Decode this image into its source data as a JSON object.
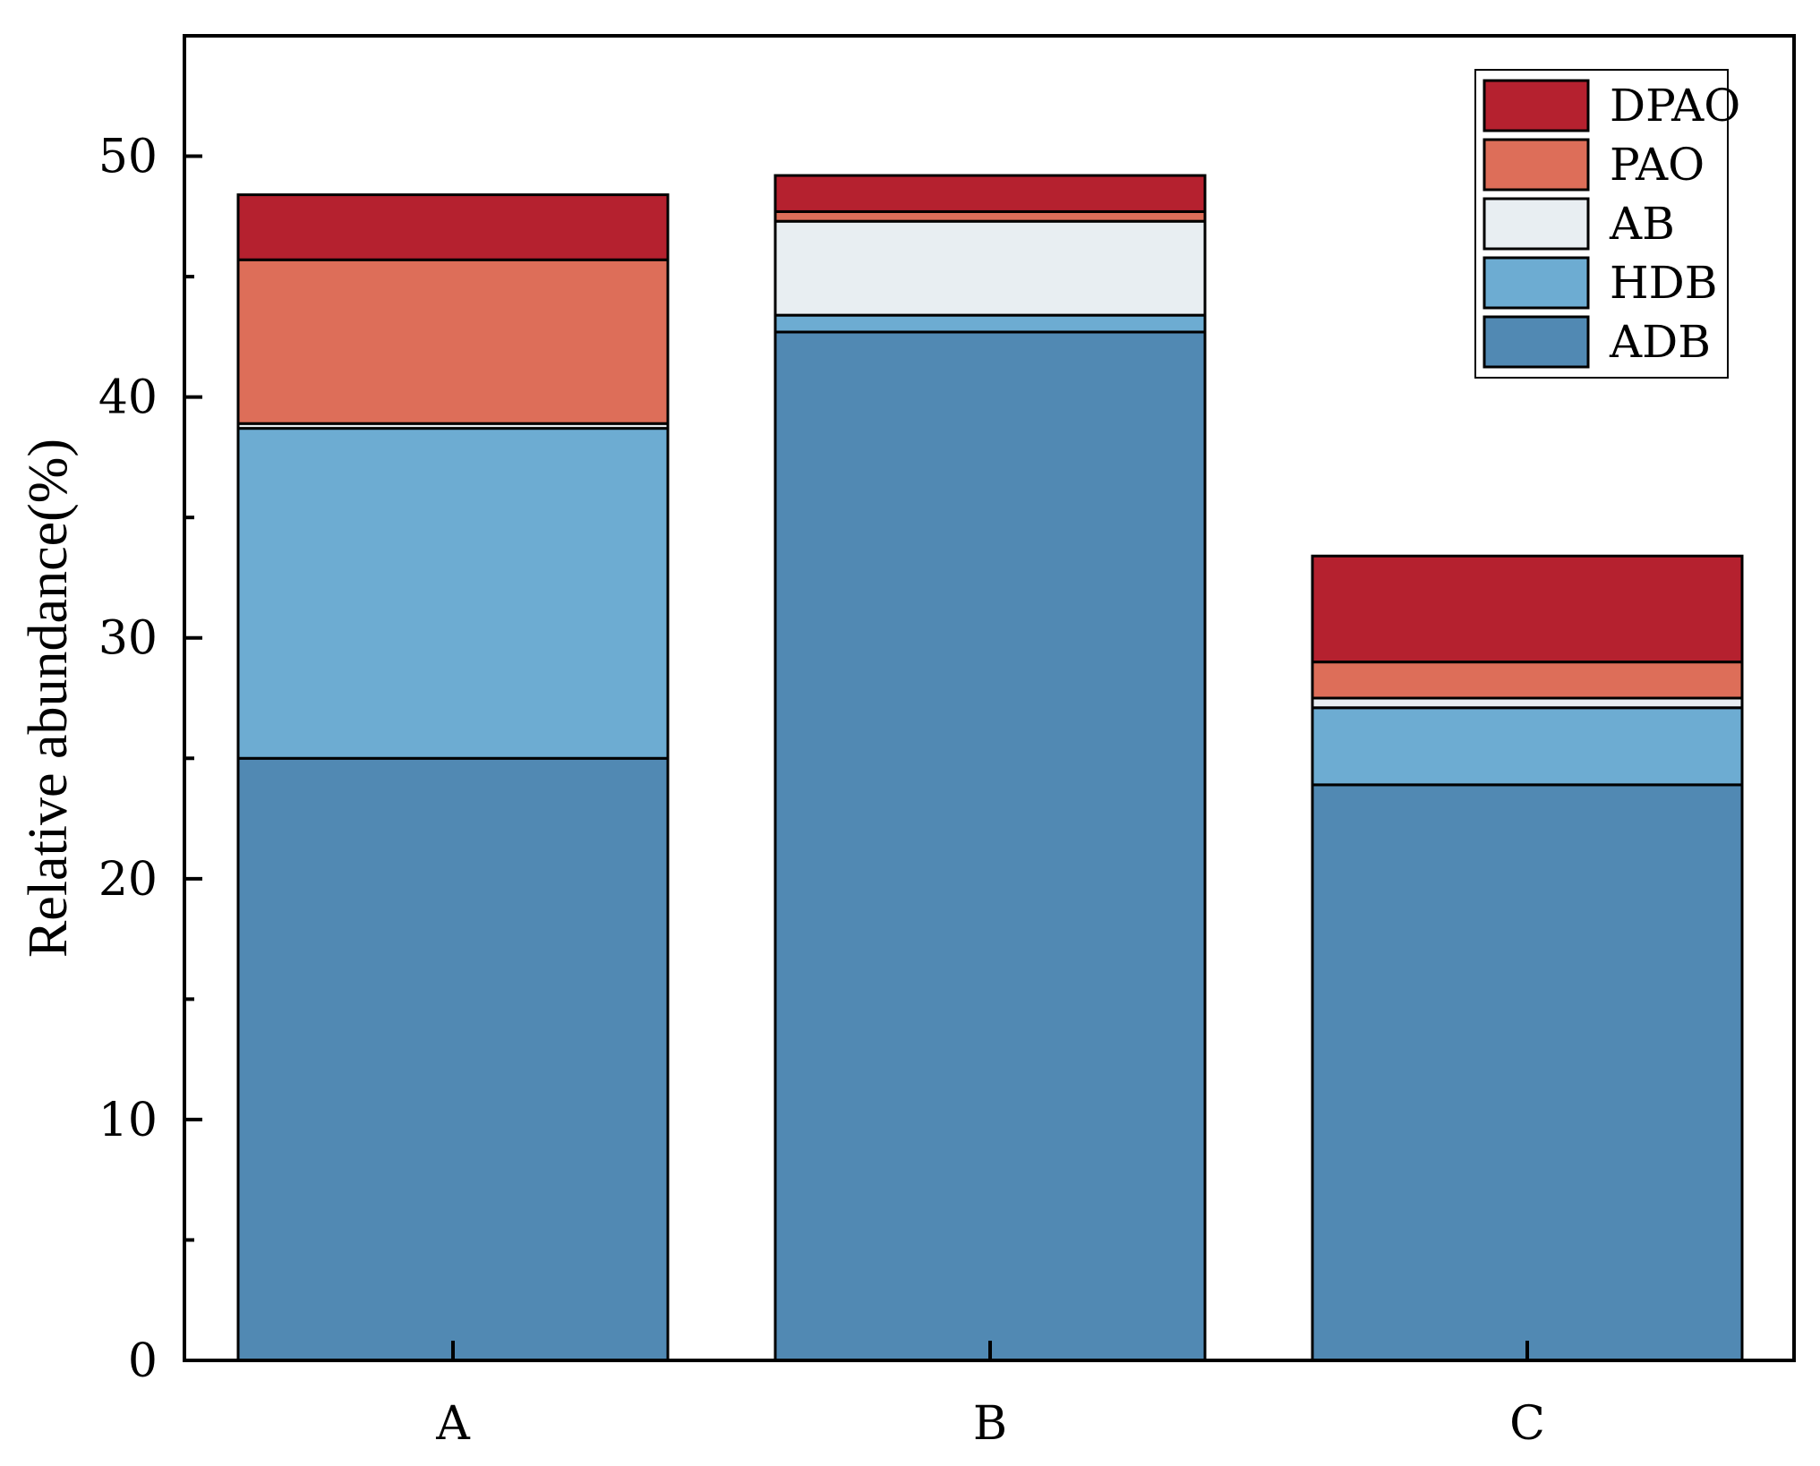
{
  "chart_data": {
    "type": "bar",
    "stacked": true,
    "categories": [
      "A",
      "B",
      "C"
    ],
    "ylabel": "Relative abundance(%)",
    "xlabel": "",
    "ylim": [
      0,
      55
    ],
    "yticks": [
      0,
      10,
      20,
      30,
      40,
      50
    ],
    "grid": false,
    "legend_position": "top-right",
    "series": [
      {
        "name": "ADB",
        "color": "#5189B3",
        "values": [
          25.0,
          42.7,
          23.9
        ]
      },
      {
        "name": "HDB",
        "color": "#6DACD2",
        "values": [
          13.7,
          0.7,
          3.2
        ]
      },
      {
        "name": "AB",
        "color": "#E8EEF2",
        "values": [
          0.2,
          3.9,
          0.4
        ]
      },
      {
        "name": "PAO",
        "color": "#DD6E59",
        "values": [
          6.8,
          0.4,
          1.5
        ]
      },
      {
        "name": "DPAO",
        "color": "#B5212F",
        "values": [
          2.7,
          1.5,
          4.4
        ]
      }
    ]
  }
}
